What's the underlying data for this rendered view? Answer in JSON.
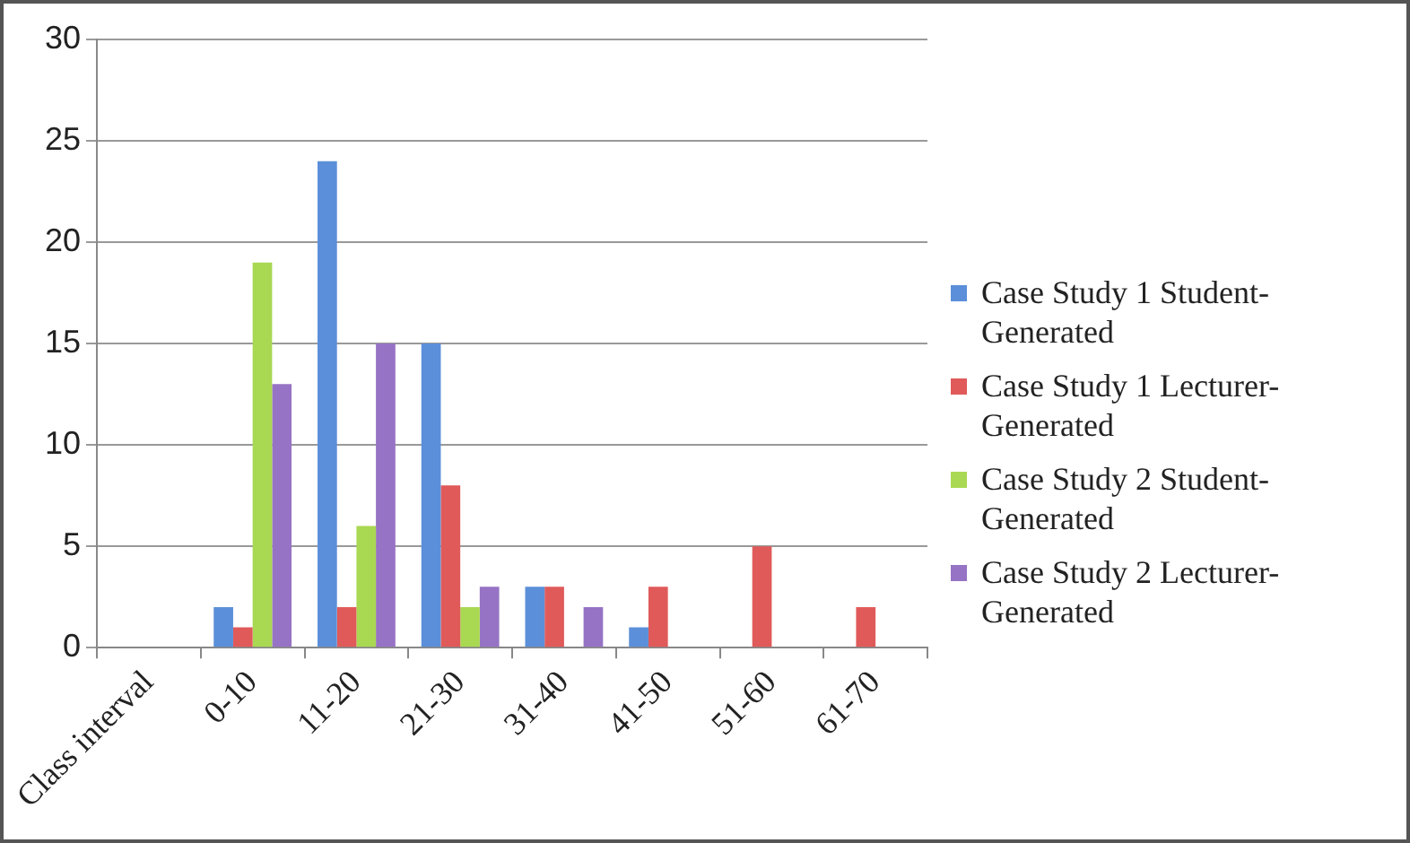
{
  "chart_data": {
    "type": "bar",
    "categories": [
      "Class interval",
      "0-10",
      "11-20",
      "21-30",
      "31-40",
      "41-50",
      "51-60",
      "61-70"
    ],
    "series": [
      {
        "name": "Case Study 1 Student-Generated",
        "color": "#5b8fd9",
        "values": [
          null,
          2,
          24,
          15,
          3,
          1,
          0,
          0
        ]
      },
      {
        "name": "Case Study 1 Lecturer-Generated",
        "color": "#e05a5a",
        "values": [
          null,
          1,
          2,
          8,
          3,
          3,
          5,
          2
        ]
      },
      {
        "name": "Case Study 2 Student-Generated",
        "color": "#a9d852",
        "values": [
          null,
          19,
          6,
          2,
          0,
          0,
          0,
          0
        ]
      },
      {
        "name": "Case Study 2 Lecturer-Generated",
        "color": "#9673c4",
        "values": [
          null,
          13,
          15,
          3,
          2,
          0,
          0,
          0
        ]
      }
    ],
    "ylim": [
      0,
      30
    ],
    "yticks": [
      0,
      5,
      10,
      15,
      20,
      25,
      30
    ],
    "grid": "y",
    "legend": "right"
  }
}
